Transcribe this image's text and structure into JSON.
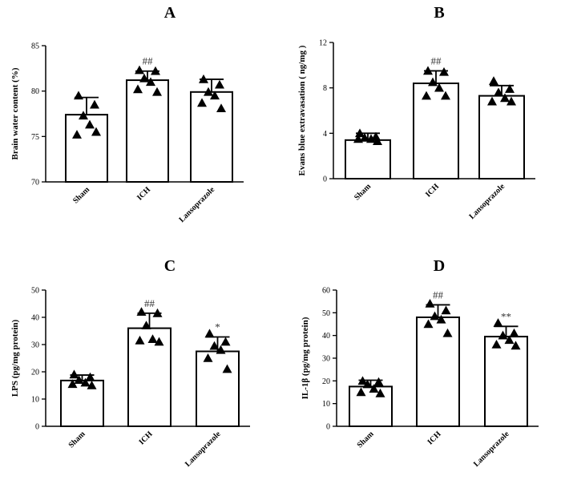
{
  "chart_data": [
    {
      "type": "bar",
      "panel_label": "A",
      "ylabel": "Brain water content (%)",
      "ylim": [
        70,
        85
      ],
      "yticks": [
        70,
        75,
        80,
        85
      ],
      "categories": [
        "Sham",
        "ICH",
        "Lansoprazole"
      ],
      "values": [
        77.4,
        81.2,
        79.9
      ],
      "errors": [
        1.9,
        1.0,
        1.4
      ],
      "points": [
        [
          79.5,
          78.5,
          77.3,
          76.3,
          75.2,
          75.5
        ],
        [
          82.3,
          82.2,
          81.4,
          81.0,
          80.2,
          79.9
        ],
        [
          81.3,
          80.7,
          79.9,
          79.5,
          78.7,
          78.1
        ]
      ],
      "significance": [
        "",
        "##",
        ""
      ],
      "grid": false,
      "legend": "none"
    },
    {
      "type": "bar",
      "panel_label": "B",
      "ylabel": "Evans blue extravasation ( ng/mg )",
      "ylim": [
        0,
        12
      ],
      "yticks": [
        0,
        4,
        8,
        12
      ],
      "categories": [
        "Sham",
        "ICH",
        "Lansoprazole"
      ],
      "values": [
        3.4,
        8.4,
        7.3
      ],
      "errors": [
        0.6,
        1.1,
        0.9
      ],
      "points": [
        [
          4.0,
          3.7,
          3.6,
          3.5,
          3.5,
          3.3
        ],
        [
          9.5,
          9.4,
          8.5,
          8.0,
          7.3,
          7.3
        ],
        [
          8.6,
          7.9,
          7.6,
          7.1,
          6.8,
          6.8
        ]
      ],
      "significance": [
        "",
        "##",
        ""
      ],
      "grid": false,
      "legend": "none"
    },
    {
      "type": "bar",
      "panel_label": "C",
      "ylabel": "LPS (pg/mg protein)",
      "ylim": [
        0,
        50
      ],
      "yticks": [
        0,
        10,
        20,
        30,
        40,
        50
      ],
      "categories": [
        "Sham",
        "ICH",
        "Lansoprazole"
      ],
      "values": [
        16.8,
        36.0,
        27.5
      ],
      "errors": [
        2.0,
        5.5,
        5.3
      ],
      "points": [
        [
          19.0,
          18.0,
          17.0,
          16.0,
          15.5,
          15.0
        ],
        [
          42.0,
          41.5,
          37.0,
          32.0,
          31.5,
          31.0
        ],
        [
          34.0,
          31.0,
          29.5,
          28.0,
          25.0,
          21.0
        ]
      ],
      "significance": [
        "",
        "##",
        "*"
      ],
      "grid": false,
      "legend": "none"
    },
    {
      "type": "bar",
      "panel_label": "D",
      "ylabel": "IL-1β (pg/mg protein)",
      "ylim": [
        0,
        60
      ],
      "yticks": [
        0,
        10,
        20,
        30,
        40,
        50,
        60
      ],
      "categories": [
        "Sham",
        "ICH",
        "Lansoprazole"
      ],
      "values": [
        17.5,
        48.0,
        39.5
      ],
      "errors": [
        2.8,
        5.5,
        4.5
      ],
      "points": [
        [
          20.0,
          19.5,
          18.5,
          16.5,
          15.0,
          14.5
        ],
        [
          54.0,
          51.0,
          48.5,
          47.0,
          45.0,
          41.0
        ],
        [
          45.5,
          41.0,
          40.0,
          38.0,
          36.0,
          35.5
        ]
      ],
      "significance": [
        "",
        "##",
        "**"
      ],
      "grid": false,
      "legend": "none"
    }
  ]
}
